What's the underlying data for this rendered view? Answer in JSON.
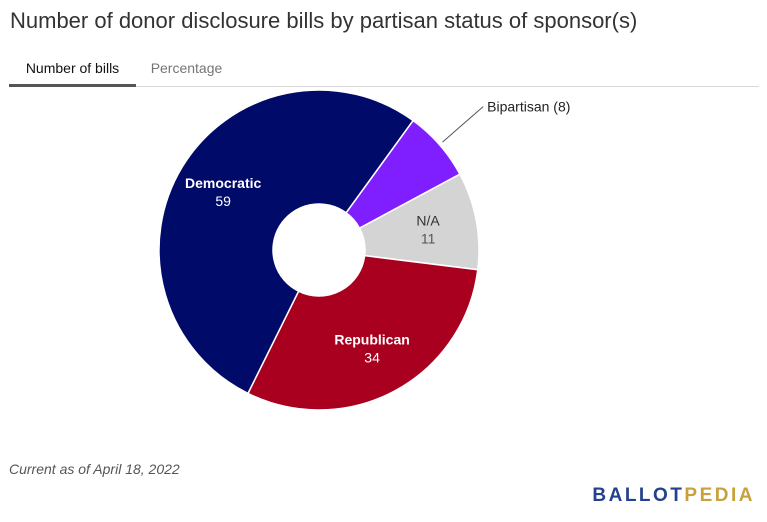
{
  "header": {
    "title": "Number of donor disclosure bills by partisan status of sponsor(s)"
  },
  "tabs": [
    {
      "label": "Number of bills",
      "active": true
    },
    {
      "label": "Percentage",
      "active": false
    }
  ],
  "chart_data": {
    "type": "pie",
    "title": "Number of donor disclosure bills by partisan status of sponsor(s)",
    "donut": true,
    "start": "top-right",
    "slices": [
      {
        "name": "Bipartisan",
        "value": 8,
        "color": "#7f1eff",
        "label_style": "external",
        "label_text": "Bipartisan (8)"
      },
      {
        "name": "N/A",
        "value": 11,
        "color": "#d4d4d4",
        "label_style": "inside-dark",
        "label_text": "11"
      },
      {
        "name": "Republican",
        "value": 34,
        "color": "#a9001f",
        "label_style": "inside-light",
        "label_text": "34"
      },
      {
        "name": "Democratic",
        "value": 59,
        "color": "#000a69",
        "label_style": "inside-light",
        "label_text": "59"
      }
    ]
  },
  "footer": {
    "note": "Current as of April 18, 2022",
    "brand_part1": "BALLOT",
    "brand_part2": "PEDIA",
    "brand_color1": "#23418d",
    "brand_color2": "#c9a13c"
  }
}
